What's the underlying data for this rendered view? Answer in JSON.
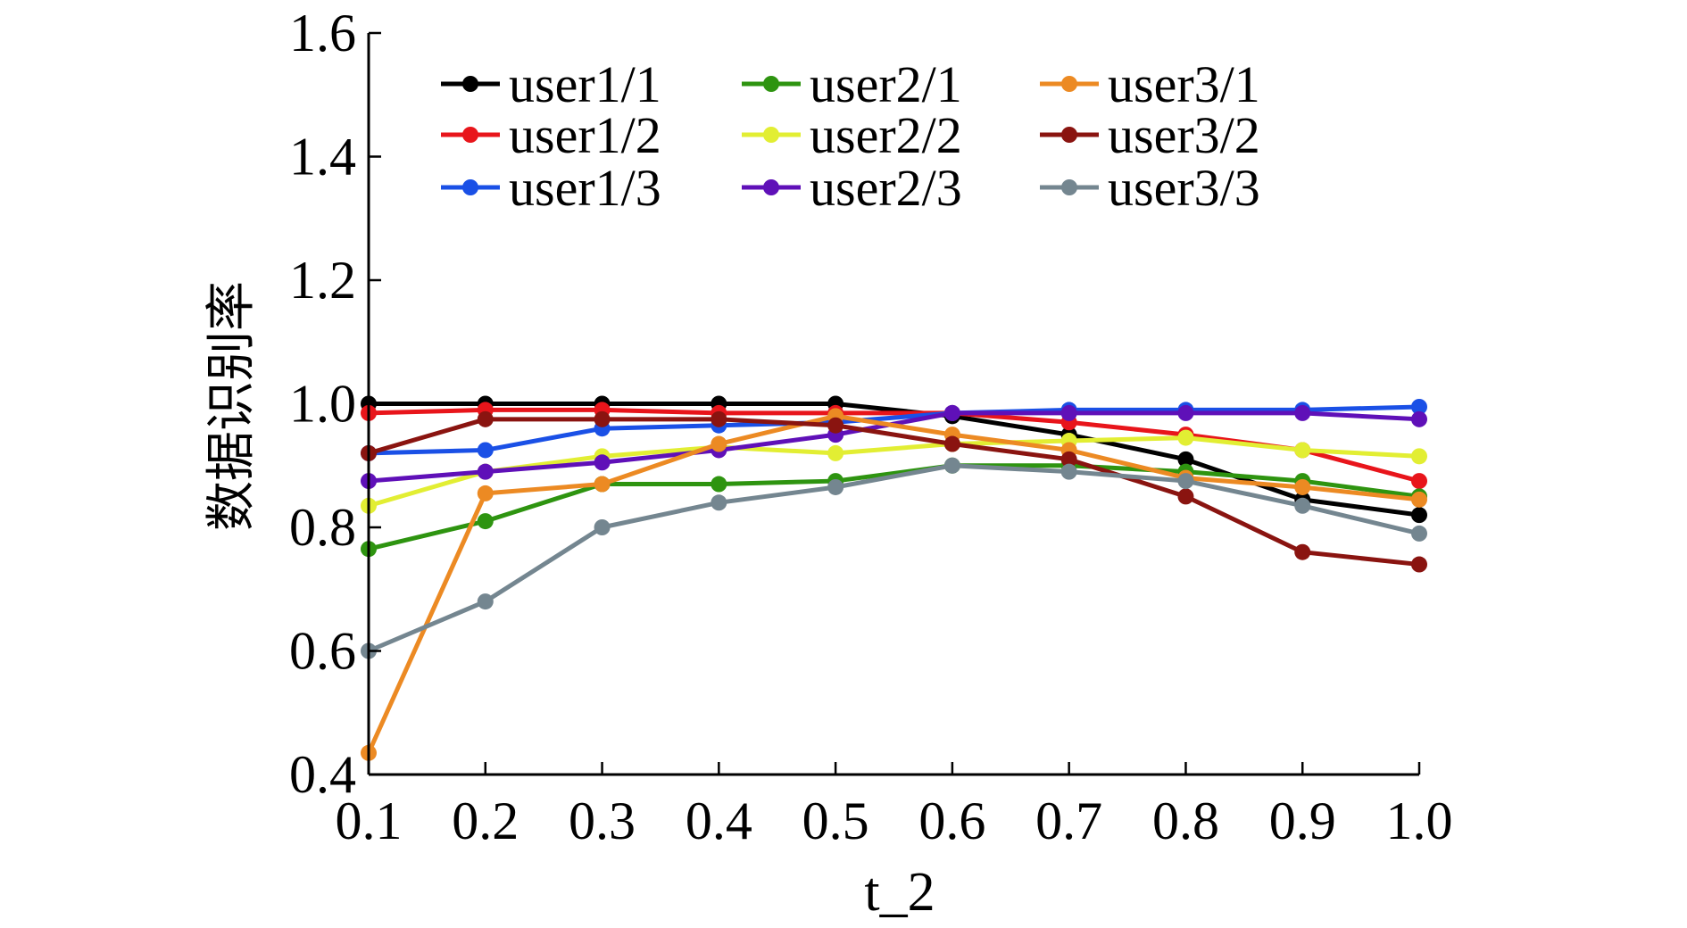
{
  "chart_data": {
    "type": "line",
    "title": "",
    "xlabel": "t_2",
    "ylabel": "数据识别率",
    "x": [
      0.1,
      0.2,
      0.3,
      0.4,
      0.5,
      0.6,
      0.7,
      0.8,
      0.9,
      1.0
    ],
    "x_tick_labels": [
      "0.1",
      "0.2",
      "0.3",
      "0.4",
      "0.5",
      "0.6",
      "0.7",
      "0.8",
      "0.9",
      "1.0"
    ],
    "y_ticks": [
      0.4,
      0.6,
      0.8,
      1.0,
      1.2,
      1.4,
      1.6
    ],
    "y_tick_labels": [
      "0.4",
      "0.6",
      "0.8",
      "1.0",
      "1.2",
      "1.4",
      "1.6"
    ],
    "xlim": [
      0.1,
      1.0
    ],
    "ylim": [
      0.4,
      1.6
    ],
    "grid": false,
    "legend_placement": "top",
    "series": [
      {
        "name": "user1/1",
        "color": "#000000",
        "values": [
          1.0,
          1.0,
          1.0,
          1.0,
          1.0,
          0.98,
          0.95,
          0.91,
          0.845,
          0.82
        ]
      },
      {
        "name": "user1/2",
        "color": "#e8151b",
        "values": [
          0.985,
          0.99,
          0.99,
          0.985,
          0.985,
          0.985,
          0.97,
          0.95,
          0.925,
          0.875
        ]
      },
      {
        "name": "user1/3",
        "color": "#1a50e6",
        "values": [
          0.92,
          0.925,
          0.96,
          0.965,
          0.97,
          0.985,
          0.99,
          0.99,
          0.99,
          0.995
        ]
      },
      {
        "name": "user2/1",
        "color": "#2e9410",
        "values": [
          0.765,
          0.81,
          0.87,
          0.87,
          0.875,
          0.9,
          0.9,
          0.89,
          0.875,
          0.85
        ]
      },
      {
        "name": "user2/2",
        "color": "#e2ee33",
        "values": [
          0.835,
          0.89,
          0.915,
          0.93,
          0.92,
          0.935,
          0.94,
          0.945,
          0.925,
          0.915
        ]
      },
      {
        "name": "user2/3",
        "color": "#5f10b8",
        "values": [
          0.875,
          0.89,
          0.905,
          0.925,
          0.95,
          0.985,
          0.985,
          0.985,
          0.985,
          0.975
        ]
      },
      {
        "name": "user3/1",
        "color": "#ec8a23",
        "values": [
          0.435,
          0.855,
          0.87,
          0.935,
          0.98,
          0.95,
          0.925,
          0.88,
          0.865,
          0.845
        ]
      },
      {
        "name": "user3/2",
        "color": "#8a1410",
        "values": [
          0.92,
          0.975,
          0.975,
          0.975,
          0.965,
          0.935,
          0.91,
          0.85,
          0.76,
          0.74
        ]
      },
      {
        "name": "user3/3",
        "color": "#748690",
        "values": [
          0.6,
          0.68,
          0.8,
          0.84,
          0.865,
          0.9,
          0.89,
          0.875,
          0.835,
          0.79
        ]
      }
    ]
  }
}
